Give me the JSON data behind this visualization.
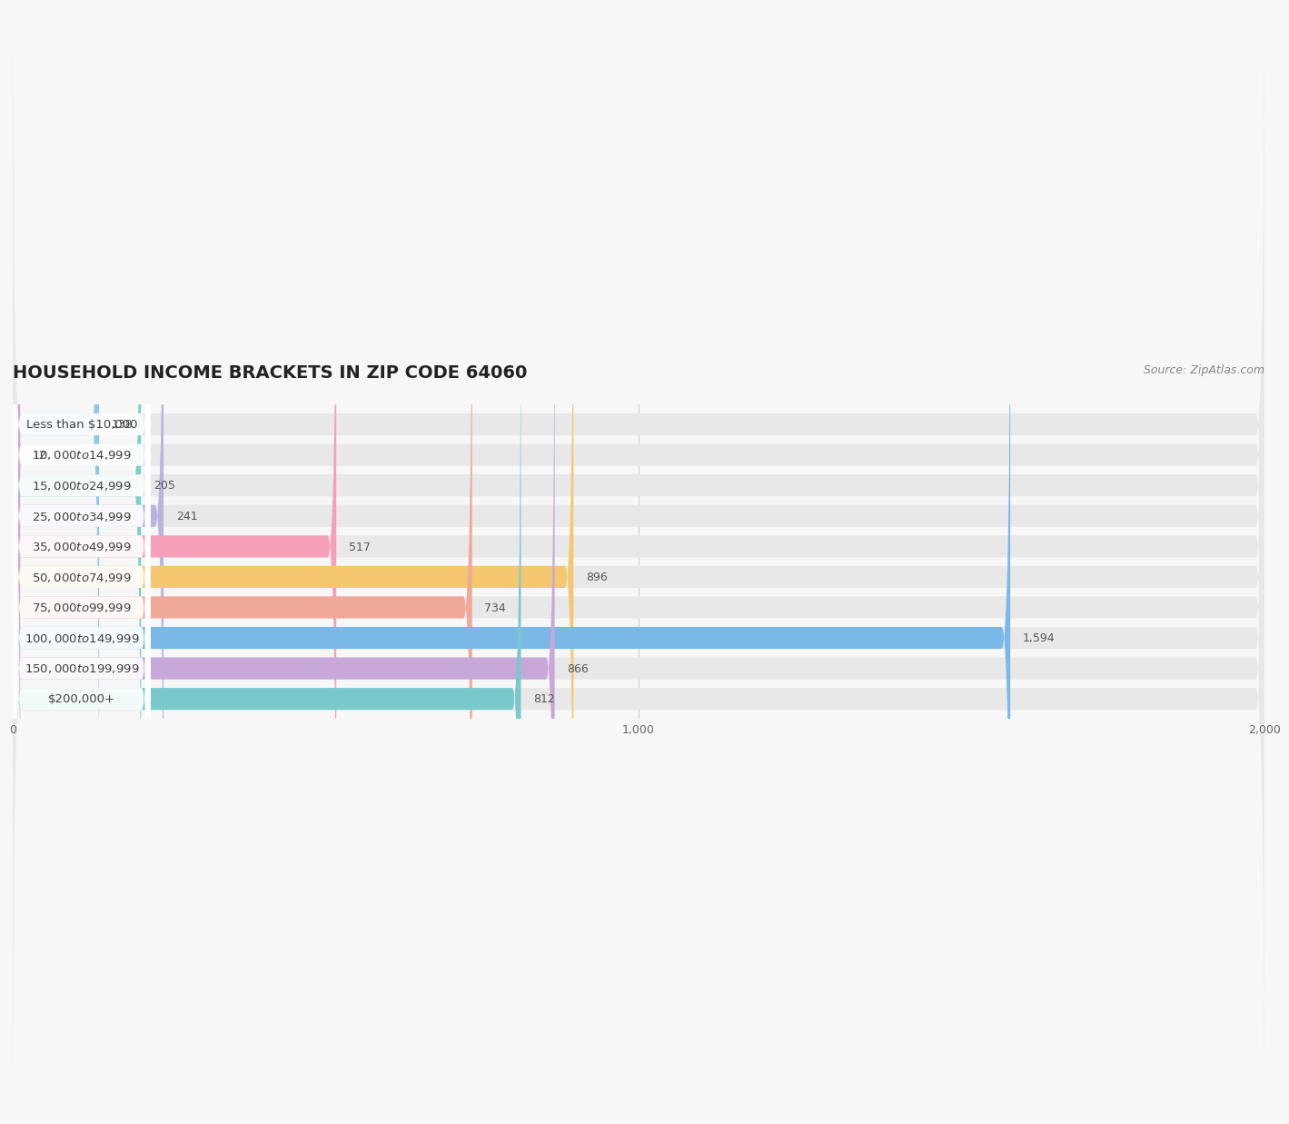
{
  "title": "HOUSEHOLD INCOME BRACKETS IN ZIP CODE 64060",
  "source": "Source: ZipAtlas.com",
  "categories": [
    "Less than $10,000",
    "$10,000 to $14,999",
    "$15,000 to $24,999",
    "$25,000 to $34,999",
    "$35,000 to $49,999",
    "$50,000 to $74,999",
    "$75,000 to $99,999",
    "$100,000 to $149,999",
    "$150,000 to $199,999",
    "$200,000+"
  ],
  "values": [
    138,
    12,
    205,
    241,
    517,
    896,
    734,
    1594,
    866,
    812
  ],
  "bar_colors": [
    "#8ec8e8",
    "#d4a8d4",
    "#7dcfcc",
    "#b8b4e0",
    "#f5a0b8",
    "#f5c870",
    "#f0a898",
    "#7ab8e8",
    "#c8a8d8",
    "#78c8cc"
  ],
  "bg_color": "#f7f7f7",
  "bar_bg_color": "#e8e8e8",
  "xlim_max": 2000,
  "xticks": [
    0,
    1000,
    2000
  ],
  "xtick_labels": [
    "0",
    "1,000",
    "2,000"
  ],
  "title_fontsize": 14,
  "label_fontsize": 9.5,
  "value_fontsize": 9,
  "source_fontsize": 9
}
